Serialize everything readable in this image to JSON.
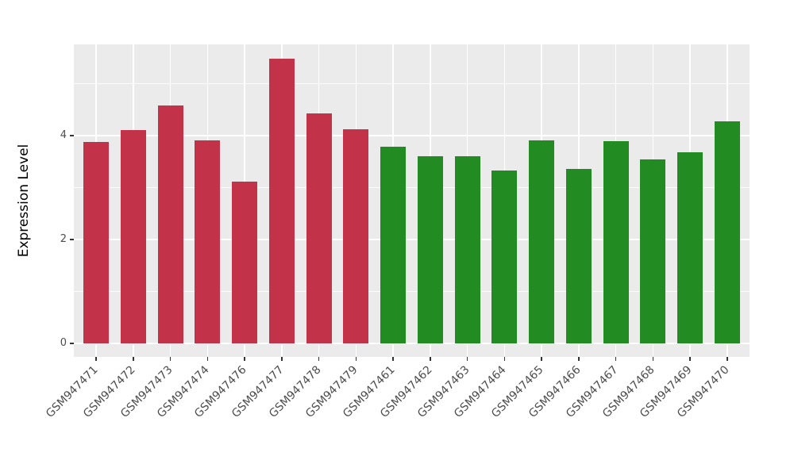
{
  "chart_data": {
    "type": "bar",
    "title": "",
    "xlabel": "",
    "ylabel": "Expression Level",
    "legend_position": "none",
    "grid": true,
    "categories": [
      "GSM947471",
      "GSM947472",
      "GSM947473",
      "GSM947474",
      "GSM947476",
      "GSM947477",
      "GSM947478",
      "GSM947479",
      "GSM947461",
      "GSM947462",
      "GSM947463",
      "GSM947464",
      "GSM947465",
      "GSM947466",
      "GSM947467",
      "GSM947468",
      "GSM947469",
      "GSM947470"
    ],
    "values": [
      3.88,
      4.11,
      4.58,
      3.91,
      3.11,
      5.48,
      4.43,
      4.12,
      3.79,
      3.61,
      3.61,
      3.33,
      3.91,
      3.36,
      3.89,
      3.55,
      3.68,
      4.28
    ],
    "bar_groups": [
      "red",
      "red",
      "red",
      "red",
      "red",
      "red",
      "red",
      "red",
      "green",
      "green",
      "green",
      "green",
      "green",
      "green",
      "green",
      "green",
      "green",
      "green"
    ],
    "group_colors": {
      "red": "#C2334A",
      "green": "#228B22"
    },
    "ylim": [
      -0.26,
      5.76
    ],
    "y_major_ticks": [
      0,
      2,
      4
    ],
    "y_minor_gridlines": [
      1,
      3,
      5
    ],
    "x_tick_rotation_deg": 45,
    "panel_background": "#EBEBEB",
    "gridline_color": "#FFFFFF",
    "tick_text_color": "#4d4d4d"
  }
}
